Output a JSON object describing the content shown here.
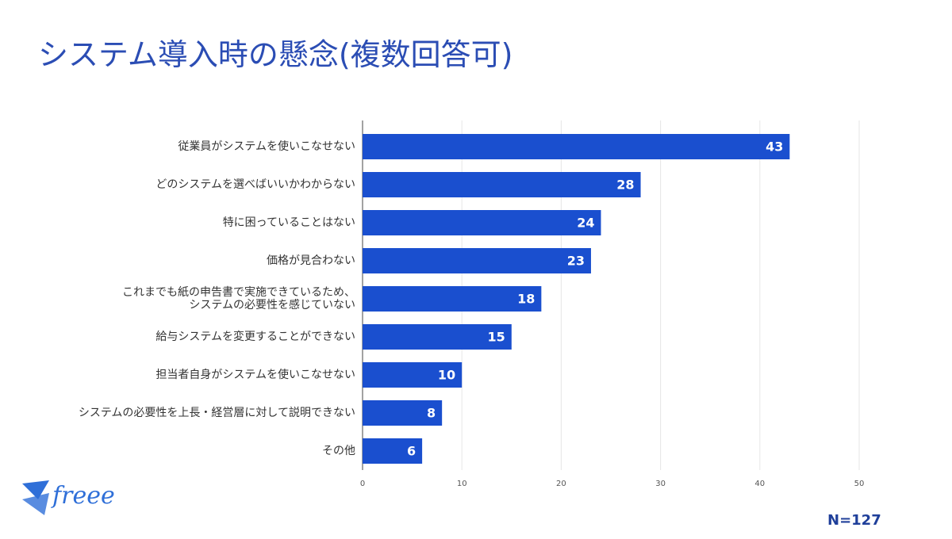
{
  "chart_data": {
    "type": "bar",
    "orientation": "horizontal",
    "title": "システム導入時の懸念(複数回答可)",
    "categories": [
      "従業員がシステムを使いこなせない",
      "どのシステムを選べばいいかわからない",
      "特に困っていることはない",
      "価格が見合わない",
      "これまでも紙の申告書で実施できているため、\nシステムの必要性を感じていない",
      "給与システムを変更することができない",
      "担当者自身がシステムを使いこなせない",
      "システムの必要性を上長・経営層に対して説明できない",
      "その他"
    ],
    "values": [
      43,
      28,
      24,
      23,
      18,
      15,
      10,
      8,
      6
    ],
    "color": "#1a4fcf",
    "xlim": [
      0,
      50
    ],
    "xticks": [
      0,
      10,
      20,
      30,
      40,
      50
    ],
    "grid": true,
    "note": "N=127"
  },
  "logo": "freee"
}
